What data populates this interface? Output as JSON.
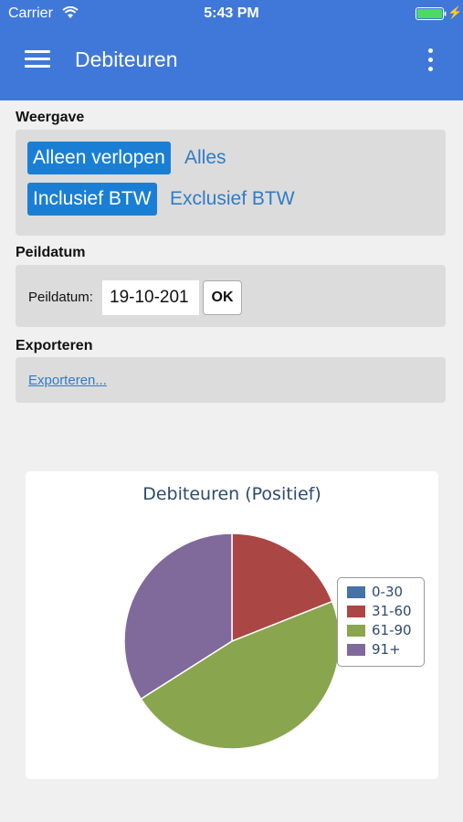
{
  "status": {
    "carrier": "Carrier",
    "time": "5:43 PM",
    "wifi_icon": "wifi-icon",
    "battery_icon": "battery-icon",
    "charging_icon": "charging-bolt-icon"
  },
  "header": {
    "title": "Debiteuren",
    "menu_icon": "hamburger-menu-icon",
    "more_icon": "more-vert-icon",
    "color": "#3f78d8"
  },
  "weergave": {
    "label": "Weergave",
    "options_row1": {
      "active": "Alleen verlopen",
      "other": "Alles"
    },
    "options_row2": {
      "active": "Inclusief BTW",
      "other": "Exclusief BTW"
    }
  },
  "peildatum": {
    "label": "Peildatum",
    "field_label": "Peildatum:",
    "value": "19-10-201",
    "ok_label": "OK"
  },
  "exporteren": {
    "label": "Exporteren",
    "link": "Exporteren..."
  },
  "chart_data": {
    "type": "pie",
    "title": "Debiteuren (Positief)",
    "categories": [
      "0-30",
      "31-60",
      "61-90",
      "91+"
    ],
    "values": [
      0,
      19,
      47,
      34
    ],
    "colors": [
      "#4572a7",
      "#aa4643",
      "#89a54e",
      "#80699b"
    ],
    "legend": "right"
  }
}
